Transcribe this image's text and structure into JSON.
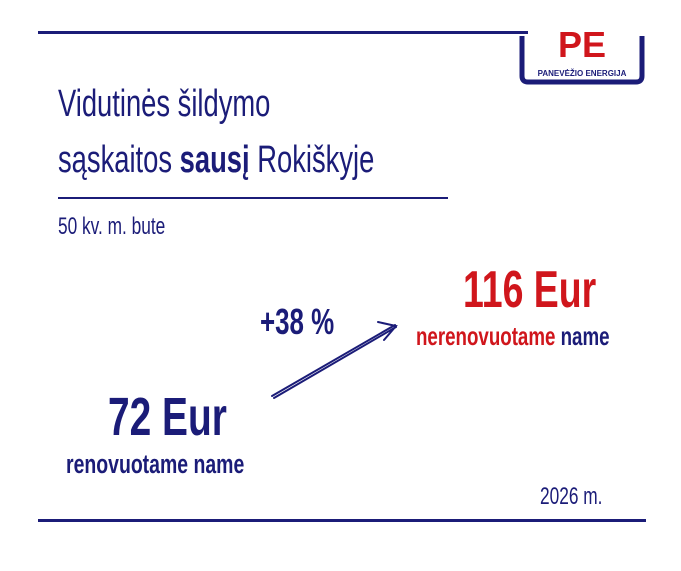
{
  "colors": {
    "navy": "#1b1c78",
    "red": "#d0161c"
  },
  "logo": {
    "text": "PE",
    "subtitle": "PANEVĖŽIO ENERGIJA"
  },
  "title": {
    "line1": "Vidutinės šildymo",
    "line2_pre": "sąskaitos ",
    "line2_bold": "sausį",
    "line2_post": " Rokiškyje"
  },
  "subtitle": "50 kv. m. bute",
  "change": "+38 %",
  "renovated": {
    "value": "72 Eur",
    "label": "renovuotame name"
  },
  "unrenovated": {
    "value": "116 Eur",
    "label_red": "nerenovuotame",
    "label_rest": " name"
  },
  "year": "2026 m."
}
